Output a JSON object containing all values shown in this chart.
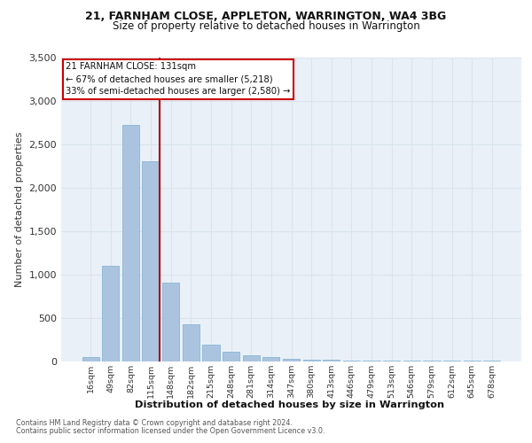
{
  "title1": "21, FARNHAM CLOSE, APPLETON, WARRINGTON, WA4 3BG",
  "title2": "Size of property relative to detached houses in Warrington",
  "xlabel": "Distribution of detached houses by size in Warrington",
  "ylabel": "Number of detached properties",
  "categories": [
    "16sqm",
    "49sqm",
    "82sqm",
    "115sqm",
    "148sqm",
    "182sqm",
    "215sqm",
    "248sqm",
    "281sqm",
    "314sqm",
    "347sqm",
    "380sqm",
    "413sqm",
    "446sqm",
    "479sqm",
    "513sqm",
    "546sqm",
    "579sqm",
    "612sqm",
    "645sqm",
    "678sqm"
  ],
  "values": [
    50,
    1100,
    2720,
    2300,
    900,
    420,
    185,
    110,
    70,
    50,
    30,
    20,
    15,
    8,
    5,
    5,
    3,
    2,
    2,
    2,
    2
  ],
  "bar_color": "#aac4e0",
  "bar_edge_color": "#7aafd0",
  "grid_color": "#d8e4ee",
  "annotation_text_line1": "21 FARNHAM CLOSE: 131sqm",
  "annotation_text_line2": "← 67% of detached houses are smaller (5,218)",
  "annotation_text_line3": "33% of semi-detached houses are larger (2,580) →",
  "annotation_box_color": "#ffffff",
  "annotation_box_edge_color": "#cc0000",
  "vline_color": "#aa0000",
  "footnote1": "Contains HM Land Registry data © Crown copyright and database right 2024.",
  "footnote2": "Contains public sector information licensed under the Open Government Licence v3.0.",
  "ylim": [
    0,
    3500
  ],
  "background_color": "#eaf0f8"
}
